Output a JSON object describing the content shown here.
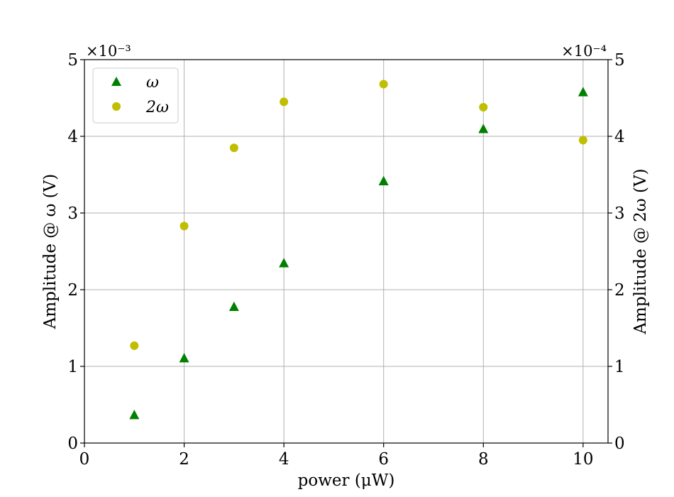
{
  "chart_data": {
    "type": "scatter",
    "xlabel": "power (μW)",
    "ylabel_left": "Amplitude @ ω (V)",
    "ylabel_right": "Amplitude @ 2ω (V)",
    "y_left_exponent": "×10⁻³",
    "y_right_exponent": "×10⁻⁴",
    "xlim": [
      0,
      10.5
    ],
    "ylim_left": [
      0,
      5
    ],
    "ylim_right": [
      0,
      5
    ],
    "x_ticks": [
      0,
      2,
      4,
      6,
      8,
      10
    ],
    "y_left_ticks": [
      0,
      1,
      2,
      3,
      4,
      5
    ],
    "y_right_ticks": [
      0,
      1,
      2,
      3,
      4,
      5
    ],
    "grid": true,
    "legend_position": "top-left",
    "series": [
      {
        "name": "ω",
        "axis": "left",
        "marker": "triangle",
        "color": "#008000",
        "x": [
          1,
          2,
          3,
          4,
          6,
          8,
          10
        ],
        "y": [
          0.37,
          1.11,
          1.78,
          2.35,
          3.42,
          4.1,
          4.58
        ]
      },
      {
        "name": "2ω",
        "axis": "right",
        "marker": "circle",
        "color": "#bfbf00",
        "x": [
          1,
          2,
          3,
          4,
          6,
          8,
          10
        ],
        "y": [
          1.27,
          2.83,
          3.85,
          4.45,
          4.68,
          4.38,
          3.95
        ]
      }
    ]
  }
}
